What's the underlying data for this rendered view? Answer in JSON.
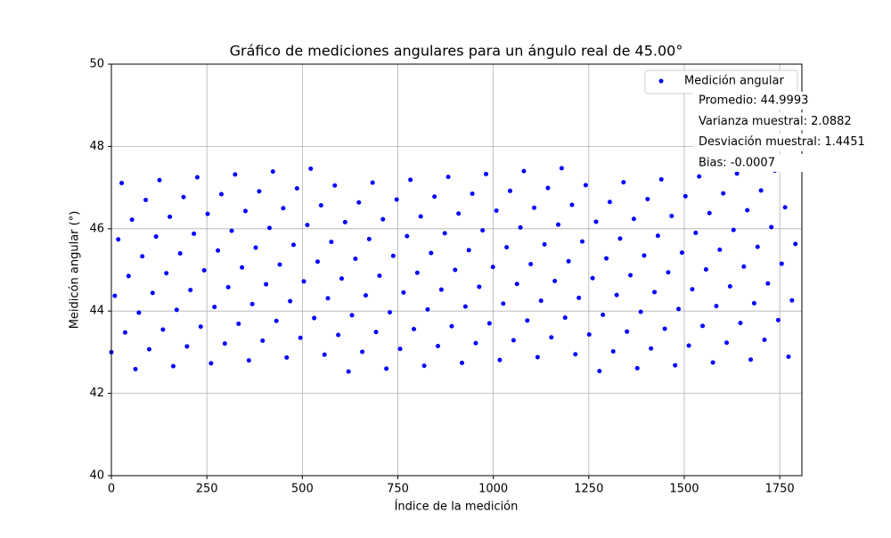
{
  "chart_data": {
    "type": "scatter",
    "title": "Gráfico de mediciones angulares para un ángulo real de 45.00°",
    "xlabel": "Índice de la medición",
    "ylabel": "Meidicón angular (°)",
    "series": [
      {
        "name": "Medición angular",
        "color": "#0000ff",
        "x": [
          0,
          9,
          18,
          27,
          36,
          45,
          54,
          63,
          72,
          81,
          90,
          99,
          108,
          117,
          126,
          135,
          144,
          153,
          162,
          171,
          180,
          189,
          198,
          207,
          216,
          225,
          234,
          243,
          252,
          261,
          270,
          279,
          288,
          297,
          306,
          315,
          324,
          333,
          342,
          351,
          360,
          369,
          378,
          387,
          396,
          405,
          414,
          423,
          432,
          441,
          450,
          459,
          468,
          477,
          486,
          495,
          504,
          513,
          522,
          531,
          540,
          549,
          558,
          567,
          576,
          585,
          594,
          603,
          612,
          621,
          630,
          639,
          648,
          657,
          666,
          675,
          684,
          693,
          702,
          711,
          720,
          729,
          738,
          747,
          756,
          765,
          774,
          783,
          792,
          801,
          810,
          819,
          828,
          837,
          846,
          855,
          864,
          873,
          882,
          891,
          900,
          909,
          918,
          927,
          936,
          945,
          954,
          963,
          972,
          981,
          990,
          999,
          1008,
          1017,
          1026,
          1035,
          1044,
          1053,
          1062,
          1071,
          1080,
          1089,
          1098,
          1107,
          1116,
          1125,
          1134,
          1143,
          1152,
          1161,
          1170,
          1179,
          1188,
          1197,
          1206,
          1215,
          1224,
          1233,
          1242,
          1251,
          1260,
          1269,
          1278,
          1287,
          1296,
          1305,
          1314,
          1323,
          1332,
          1341,
          1350,
          1359,
          1368,
          1377,
          1386,
          1395,
          1404,
          1413,
          1422,
          1431,
          1440,
          1449,
          1458,
          1467,
          1476,
          1485,
          1494,
          1503,
          1512,
          1521,
          1530,
          1539,
          1548,
          1557,
          1566,
          1575,
          1584,
          1593,
          1602,
          1611,
          1620,
          1629,
          1638,
          1647,
          1656,
          1665,
          1674,
          1683,
          1692,
          1701,
          1710,
          1719,
          1728,
          1737,
          1746,
          1755,
          1764,
          1773,
          1782,
          1791
        ],
        "values": [
          43.0,
          44.37,
          45.74,
          47.11,
          43.48,
          44.85,
          46.22,
          42.59,
          43.96,
          45.33,
          46.7,
          43.07,
          44.44,
          45.81,
          47.18,
          43.55,
          44.92,
          46.29,
          42.66,
          44.03,
          45.4,
          46.77,
          43.14,
          44.51,
          45.88,
          47.25,
          43.62,
          44.99,
          46.36,
          42.73,
          44.1,
          45.47,
          46.84,
          43.21,
          44.58,
          45.95,
          47.32,
          43.69,
          45.06,
          46.43,
          42.8,
          44.17,
          45.54,
          46.91,
          43.28,
          44.65,
          46.02,
          47.39,
          43.76,
          45.13,
          46.5,
          42.87,
          44.24,
          45.61,
          46.98,
          43.35,
          44.72,
          46.09,
          47.46,
          43.83,
          45.2,
          46.57,
          42.94,
          44.31,
          45.68,
          47.05,
          43.42,
          44.79,
          46.16,
          42.53,
          43.9,
          45.27,
          46.64,
          43.01,
          44.38,
          45.75,
          47.12,
          43.49,
          44.86,
          46.23,
          42.6,
          43.97,
          45.34,
          46.71,
          43.08,
          44.45,
          45.82,
          47.19,
          43.56,
          44.93,
          46.3,
          42.67,
          44.04,
          45.41,
          46.78,
          43.15,
          44.52,
          45.89,
          47.26,
          43.63,
          45.0,
          46.37,
          42.74,
          44.11,
          45.48,
          46.85,
          43.22,
          44.59,
          45.96,
          47.33,
          43.7,
          45.07,
          46.44,
          42.81,
          44.18,
          45.55,
          46.92,
          43.29,
          44.66,
          46.03,
          47.4,
          43.77,
          45.14,
          46.51,
          42.88,
          44.25,
          45.62,
          46.99,
          43.36,
          44.73,
          46.1,
          47.47,
          43.84,
          45.21,
          46.58,
          42.95,
          44.32,
          45.69,
          47.06,
          43.43,
          44.8,
          46.17,
          42.54,
          43.91,
          45.28,
          46.65,
          43.02,
          44.39,
          45.76,
          47.13,
          43.5,
          44.87,
          46.24,
          42.61,
          43.98,
          45.35,
          46.72,
          43.09,
          44.46,
          45.83,
          47.2,
          43.57,
          44.94,
          46.31,
          42.68,
          44.05,
          45.42,
          46.79,
          43.16,
          44.53,
          45.9,
          47.27,
          43.64,
          45.01,
          46.38,
          42.75,
          44.12,
          45.49,
          46.86,
          43.23,
          44.6,
          45.97,
          47.34,
          43.71,
          45.08,
          46.45,
          42.82,
          44.19,
          45.56,
          46.93,
          43.3,
          44.67,
          46.04,
          47.41,
          43.78,
          45.15,
          46.52,
          42.89,
          44.26,
          45.63
        ]
      }
    ],
    "annotations": [
      "Promedio: 44.9993",
      "Varianza muestral: 2.0882",
      "Desviación muestral: 1.4451",
      "Bias: -0.0007"
    ],
    "xlim": [
      0,
      1808
    ],
    "ylim": [
      40,
      50
    ],
    "xticks": [
      0,
      250,
      500,
      750,
      1000,
      1250,
      1500,
      1750
    ],
    "yticks": [
      40,
      42,
      44,
      46,
      48,
      50
    ],
    "grid": true,
    "legend": "upper right"
  }
}
